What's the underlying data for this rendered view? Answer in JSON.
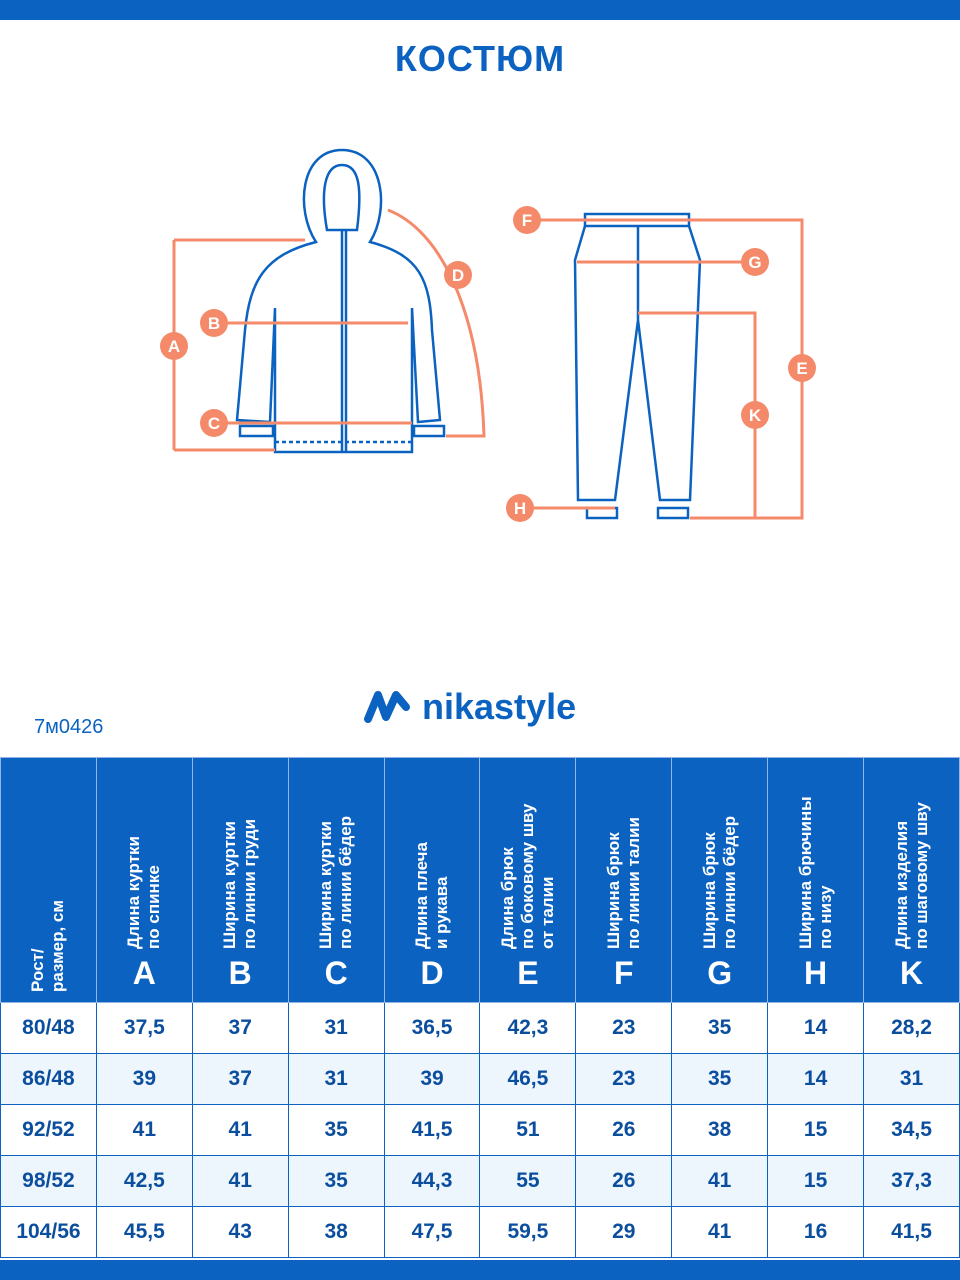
{
  "title": "КОСТЮМ",
  "article": "7м0426",
  "brand": "nikastyle",
  "colors": {
    "brand": "#0b62c0",
    "measure": "#f58a6a"
  },
  "diagram_labels": {
    "A": "A",
    "B": "B",
    "C": "C",
    "D": "D",
    "E": "E",
    "F": "F",
    "G": "G",
    "H": "H",
    "K": "K"
  },
  "table": {
    "headers": [
      {
        "text": "Рост/\nразмер, см",
        "letter": ""
      },
      {
        "text": "Длина куртки\nпо спинке",
        "letter": "A"
      },
      {
        "text": "Ширина куртки\nпо линии груди",
        "letter": "B"
      },
      {
        "text": "Ширина куртки\nпо линии бёдер",
        "letter": "C"
      },
      {
        "text": "Длина плеча\nи рукава",
        "letter": "D"
      },
      {
        "text": "Длина брюк\nпо боковому шву\nот талии",
        "letter": "E"
      },
      {
        "text": "Ширина брюк\nпо линии талии",
        "letter": "F"
      },
      {
        "text": "Ширина брюк\nпо линии бёдер",
        "letter": "G"
      },
      {
        "text": "Ширина брючины\nпо низу",
        "letter": "H"
      },
      {
        "text": "Длина изделия\nпо шаговому шву",
        "letter": "K"
      }
    ],
    "rows": [
      [
        "80/48",
        "37,5",
        "37",
        "31",
        "36,5",
        "42,3",
        "23",
        "35",
        "14",
        "28,2"
      ],
      [
        "86/48",
        "39",
        "37",
        "31",
        "39",
        "46,5",
        "23",
        "35",
        "14",
        "31"
      ],
      [
        "92/52",
        "41",
        "41",
        "35",
        "41,5",
        "51",
        "26",
        "38",
        "15",
        "34,5"
      ],
      [
        "98/52",
        "42,5",
        "41",
        "35",
        "44,3",
        "55",
        "26",
        "41",
        "15",
        "37,3"
      ],
      [
        "104/56",
        "45,5",
        "43",
        "38",
        "47,5",
        "59,5",
        "29",
        "41",
        "16",
        "41,5"
      ]
    ]
  }
}
